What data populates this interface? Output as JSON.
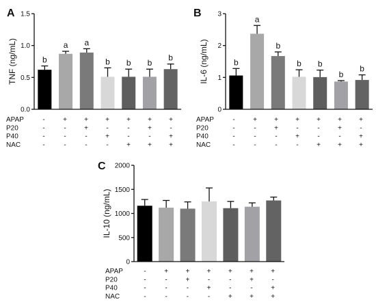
{
  "treatment_rows": [
    {
      "name": "APAP",
      "signs": [
        "-",
        "+",
        "+",
        "+",
        "+",
        "+",
        "+"
      ]
    },
    {
      "name": "P20",
      "signs": [
        "-",
        "-",
        "+",
        "-",
        "-",
        "+",
        "-"
      ]
    },
    {
      "name": "P40",
      "signs": [
        "-",
        "-",
        "-",
        "+",
        "-",
        "-",
        "+"
      ]
    },
    {
      "name": "NAC",
      "signs": [
        "-",
        "-",
        "-",
        "-",
        "+",
        "+",
        "+"
      ]
    }
  ],
  "bar_colors": [
    "#000000",
    "#a8a8a8",
    "#7a7a7a",
    "#d8d8d8",
    "#5e5e5e",
    "#a2a2a6",
    "#636363"
  ],
  "chart_data": [
    {
      "panel": "A",
      "type": "bar",
      "ylabel": "TNF (ng/mL)",
      "ylim": [
        0,
        1.5
      ],
      "yticks": [
        "0.0",
        "0.5",
        "1.0",
        "1.5"
      ],
      "values": [
        0.62,
        0.87,
        0.89,
        0.51,
        0.51,
        0.51,
        0.63
      ],
      "errors": [
        0.06,
        0.04,
        0.06,
        0.14,
        0.12,
        0.12,
        0.08
      ],
      "letters": [
        "b",
        "a",
        "a",
        "b",
        "b",
        "b",
        "b"
      ]
    },
    {
      "panel": "B",
      "type": "bar",
      "ylabel": "IL-6 (ng/mL)",
      "ylim": [
        0,
        3
      ],
      "yticks": [
        "0",
        "1",
        "2",
        "3"
      ],
      "values": [
        1.06,
        2.37,
        1.67,
        1.02,
        1.01,
        0.87,
        0.92
      ],
      "errors": [
        0.22,
        0.26,
        0.13,
        0.22,
        0.22,
        0.03,
        0.16
      ],
      "letters": [
        "b",
        "a",
        "b",
        "b",
        "b",
        "b",
        "b"
      ]
    },
    {
      "panel": "C",
      "type": "bar",
      "ylabel": "IL-10 (ng/mL)",
      "ylim": [
        0,
        2000
      ],
      "yticks": [
        "0",
        "500",
        "1000",
        "1500",
        "2000"
      ],
      "values": [
        1160,
        1120,
        1100,
        1250,
        1110,
        1140,
        1270
      ],
      "errors": [
        130,
        150,
        140,
        280,
        140,
        80,
        70
      ],
      "letters": []
    }
  ]
}
